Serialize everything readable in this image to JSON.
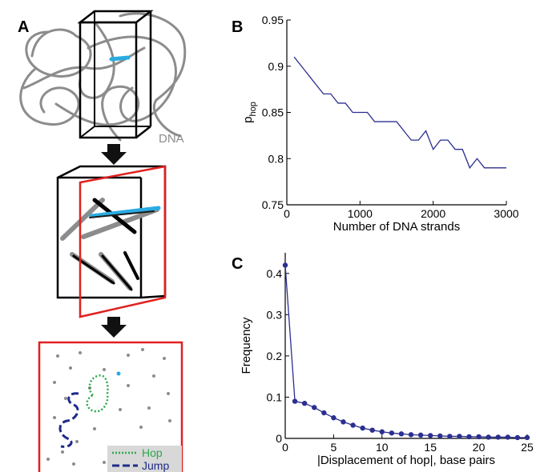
{
  "panels": {
    "a": {
      "letter": "A",
      "dna_label": "DNA",
      "legend": {
        "hop_label": "Hop",
        "jump_label": "Jump"
      },
      "colors": {
        "dna": "#8c8c8c",
        "highlight": "#29abe2",
        "box_black": "#000000",
        "box_red": "#e02020",
        "hop": "#2aa84a",
        "jump": "#1e2a8c"
      }
    },
    "b": {
      "letter": "B"
    },
    "c": {
      "letter": "C"
    }
  },
  "chart_data": [
    {
      "type": "line",
      "panel": "B",
      "xlabel": "Number of DNA strands",
      "ylabel_main": "p",
      "ylabel_sub": "hop",
      "xlim": [
        0,
        3000
      ],
      "ylim": [
        0.75,
        0.95
      ],
      "xticks": [
        0,
        1000,
        2000,
        3000
      ],
      "yticks": [
        0.75,
        0.8,
        0.85,
        0.9,
        0.95
      ],
      "ytick_labels": [
        "0.75",
        "0.8",
        "0.85",
        "0.9",
        "0.95"
      ],
      "color": "#2b2f8f",
      "x": [
        100,
        200,
        300,
        400,
        500,
        600,
        700,
        800,
        900,
        1000,
        1100,
        1200,
        1300,
        1400,
        1500,
        1600,
        1700,
        1800,
        1900,
        2000,
        2100,
        2200,
        2300,
        2400,
        2500,
        2600,
        2700,
        2800,
        2900,
        3000
      ],
      "y": [
        0.91,
        0.9,
        0.89,
        0.88,
        0.87,
        0.87,
        0.86,
        0.86,
        0.85,
        0.85,
        0.85,
        0.84,
        0.84,
        0.84,
        0.84,
        0.83,
        0.82,
        0.82,
        0.83,
        0.81,
        0.82,
        0.82,
        0.81,
        0.81,
        0.79,
        0.8,
        0.79,
        0.79,
        0.79,
        0.79
      ]
    },
    {
      "type": "line",
      "panel": "C",
      "xlabel": "|Displacement of hop|, base pairs",
      "ylabel": "Frequency",
      "xlim": [
        0,
        25
      ],
      "ylim": [
        0,
        0.45
      ],
      "xticks": [
        0,
        5,
        10,
        15,
        20,
        25
      ],
      "yticks": [
        0,
        0.1,
        0.2,
        0.3,
        0.4
      ],
      "ytick_labels": [
        "0",
        "0.1",
        "0.2",
        "0.3",
        "0.4"
      ],
      "color": "#2b2f8f",
      "x": [
        0,
        1,
        2,
        3,
        4,
        5,
        6,
        7,
        8,
        9,
        10,
        11,
        12,
        13,
        14,
        15,
        16,
        17,
        18,
        19,
        20,
        21,
        22,
        23,
        24,
        25
      ],
      "y": [
        0.42,
        0.09,
        0.085,
        0.075,
        0.062,
        0.05,
        0.04,
        0.032,
        0.025,
        0.02,
        0.016,
        0.013,
        0.011,
        0.009,
        0.008,
        0.007,
        0.006,
        0.005,
        0.005,
        0.004,
        0.004,
        0.003,
        0.003,
        0.003,
        0.002,
        0.002
      ]
    }
  ]
}
